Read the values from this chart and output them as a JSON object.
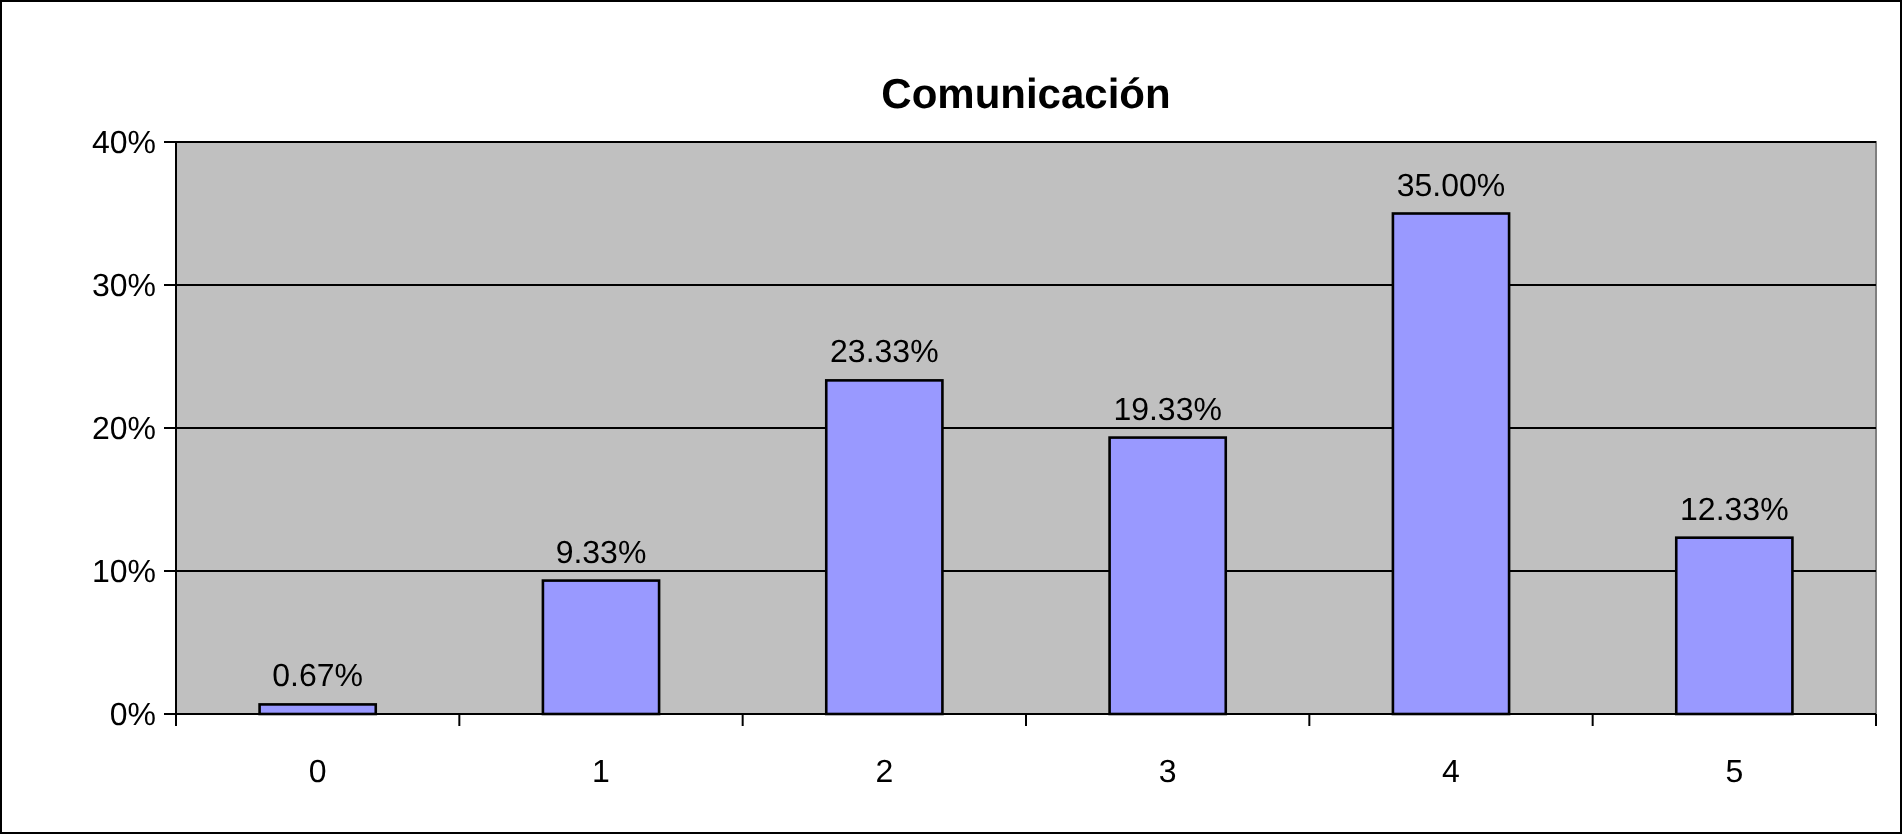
{
  "chart_data": {
    "type": "bar",
    "title": "Comunicación",
    "categories": [
      "0",
      "1",
      "2",
      "3",
      "4",
      "5"
    ],
    "values": [
      0.67,
      9.33,
      23.33,
      19.33,
      35.0,
      12.33
    ],
    "value_labels": [
      "0.67%",
      "9.33%",
      "23.33%",
      "19.33%",
      "35.00%",
      "12.33%"
    ],
    "color": "#9999ff",
    "ylim": [
      0,
      40
    ],
    "yticks": [
      {
        "value": 0,
        "label": "0%"
      },
      {
        "value": 10,
        "label": "10%"
      },
      {
        "value": 20,
        "label": "20%"
      },
      {
        "value": 30,
        "label": "30%"
      },
      {
        "value": 40,
        "label": "40%"
      }
    ],
    "grid": "y"
  }
}
